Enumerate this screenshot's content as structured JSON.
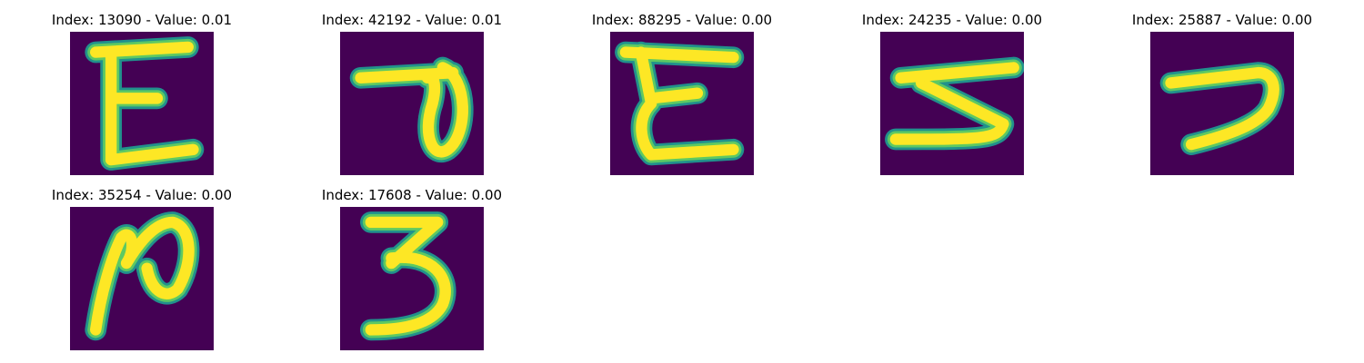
{
  "figure": {
    "background": "#ffffff",
    "panels": [
      {
        "title": "Index: 13090 - Value: 0.01",
        "glyph": "digit-3-mirrored-icon"
      },
      {
        "title": "Index: 42192 - Value: 0.01",
        "glyph": "digit-9-rotated-icon"
      },
      {
        "title": "Index: 88295 - Value: 0.00",
        "glyph": "digit-3-mirrored-icon"
      },
      {
        "title": "Index: 24235 - Value: 0.00",
        "glyph": "digit-3-rotated-icon"
      },
      {
        "title": "Index: 25887 - Value: 0.00",
        "glyph": "digit-7-icon"
      },
      {
        "title": "Index: 35254 - Value: 0.00",
        "glyph": "digit-2-rotated-icon"
      },
      {
        "title": "Index: 17608 - Value: 0.00",
        "glyph": "digit-3-icon"
      }
    ],
    "colors": {
      "image_background": "#440154",
      "stroke_edge": "#21918c",
      "stroke_mid": "#5ec962",
      "stroke_core": "#fde725"
    }
  }
}
